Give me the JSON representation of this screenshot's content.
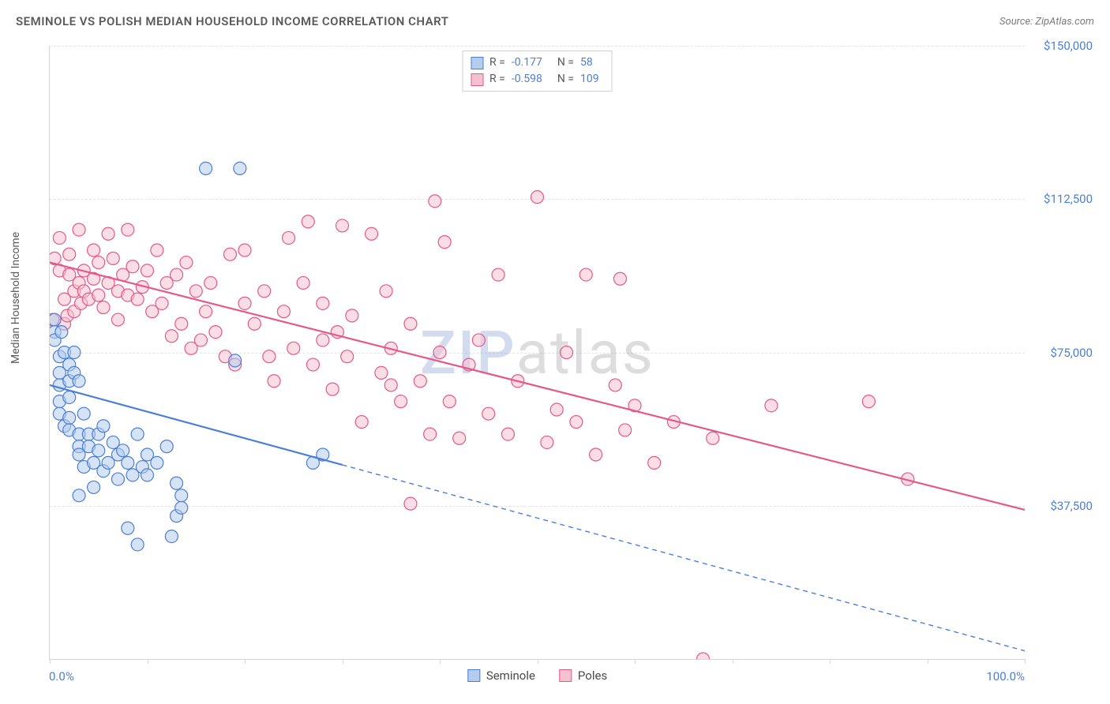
{
  "header": {
    "title": "SEMINOLE VS POLISH MEDIAN HOUSEHOLD INCOME CORRELATION CHART",
    "source": "Source: ZipAtlas.com"
  },
  "watermark": {
    "part1": "ZIP",
    "part2": "atlas"
  },
  "chart": {
    "type": "scatter",
    "background_color": "#ffffff",
    "grid_color": "#e4e4e4",
    "axis_color": "#d6d6d6",
    "text_color": "#5a5a5a",
    "value_color": "#4a7fd8",
    "title_fontsize": 15,
    "label_fontsize": 14,
    "tick_fontsize": 15,
    "ylabel": "Median Household Income",
    "xlim": [
      0,
      100
    ],
    "ylim": [
      0,
      150000
    ],
    "x_left_label": "0.0%",
    "x_right_label": "100.0%",
    "x_ticks": [
      0,
      10,
      20,
      30,
      40,
      50,
      60,
      70,
      80,
      90,
      100
    ],
    "y_ticks": [
      {
        "value": 37500,
        "label": "$37,500"
      },
      {
        "value": 75000,
        "label": "$75,000"
      },
      {
        "value": 112500,
        "label": "$112,500"
      },
      {
        "value": 150000,
        "label": "$150,000"
      }
    ],
    "series": [
      {
        "name": "Seminole",
        "fill_color": "#b4cced",
        "stroke_color": "#4a7fd8",
        "fill_opacity": 0.55,
        "marker_radius": 8,
        "R": "-0.177",
        "N": "58",
        "regression": {
          "solid": {
            "x1": 0,
            "y1": 67000,
            "x2": 30,
            "y2": 47500
          },
          "dashed": {
            "x1": 30,
            "y1": 47500,
            "x2": 100,
            "y2": 2000
          },
          "line_width": 2.2
        },
        "points": [
          [
            0.5,
            83000
          ],
          [
            0.5,
            80000
          ],
          [
            0.5,
            78000
          ],
          [
            1,
            74000
          ],
          [
            1,
            70000
          ],
          [
            1,
            67000
          ],
          [
            1,
            63000
          ],
          [
            1,
            60000
          ],
          [
            1.5,
            57000
          ],
          [
            1.2,
            80000
          ],
          [
            1.5,
            75000
          ],
          [
            2,
            72000
          ],
          [
            2,
            68000
          ],
          [
            2,
            64000
          ],
          [
            2,
            59000
          ],
          [
            2,
            56000
          ],
          [
            2.5,
            75000
          ],
          [
            2.5,
            70000
          ],
          [
            3,
            68000
          ],
          [
            3,
            55000
          ],
          [
            3,
            52000
          ],
          [
            3,
            50000
          ],
          [
            3.5,
            47000
          ],
          [
            3.5,
            60000
          ],
          [
            4,
            55000
          ],
          [
            4,
            52000
          ],
          [
            4.5,
            48000
          ],
          [
            5,
            55000
          ],
          [
            5,
            51000
          ],
          [
            5.5,
            57000
          ],
          [
            5.5,
            46000
          ],
          [
            6,
            48000
          ],
          [
            6.5,
            53000
          ],
          [
            7,
            50000
          ],
          [
            7,
            44000
          ],
          [
            7.5,
            51000
          ],
          [
            8,
            48000
          ],
          [
            8.5,
            45000
          ],
          [
            9,
            55000
          ],
          [
            9.5,
            47000
          ],
          [
            10,
            50000
          ],
          [
            11,
            48000
          ],
          [
            12,
            52000
          ],
          [
            12.5,
            30000
          ],
          [
            13,
            43000
          ],
          [
            8,
            32000
          ],
          [
            9,
            28000
          ],
          [
            13.5,
            40000
          ],
          [
            13,
            35000
          ],
          [
            13.5,
            37000
          ],
          [
            16,
            120000
          ],
          [
            19,
            73000
          ],
          [
            19.5,
            120000
          ],
          [
            27,
            48000
          ],
          [
            28,
            50000
          ],
          [
            4.5,
            42000
          ],
          [
            3,
            40000
          ],
          [
            10,
            45000
          ]
        ]
      },
      {
        "name": "Poles",
        "fill_color": "#f5c1cf",
        "stroke_color": "#e5588a",
        "fill_opacity": 0.55,
        "marker_radius": 8,
        "R": "-0.598",
        "N": "109",
        "regression": {
          "solid": {
            "x1": 0,
            "y1": 97000,
            "x2": 100,
            "y2": 36500
          },
          "dashed": null,
          "line_width": 2.2
        },
        "points": [
          [
            0.5,
            98000
          ],
          [
            1,
            103000
          ],
          [
            1,
            95000
          ],
          [
            1.5,
            88000
          ],
          [
            1.5,
            82000
          ],
          [
            1.8,
            84000
          ],
          [
            0.3,
            83000
          ],
          [
            2,
            99000
          ],
          [
            2,
            94000
          ],
          [
            2.5,
            90000
          ],
          [
            2.5,
            85000
          ],
          [
            3,
            105000
          ],
          [
            3,
            92000
          ],
          [
            3.2,
            87000
          ],
          [
            3.5,
            95000
          ],
          [
            3.5,
            90000
          ],
          [
            4,
            88000
          ],
          [
            4.5,
            100000
          ],
          [
            4.5,
            93000
          ],
          [
            5,
            97000
          ],
          [
            5,
            89000
          ],
          [
            5.5,
            86000
          ],
          [
            6,
            104000
          ],
          [
            6,
            92000
          ],
          [
            6.5,
            98000
          ],
          [
            7,
            90000
          ],
          [
            7,
            83000
          ],
          [
            7.5,
            94000
          ],
          [
            8,
            105000
          ],
          [
            8,
            89000
          ],
          [
            8.5,
            96000
          ],
          [
            9,
            88000
          ],
          [
            9.5,
            91000
          ],
          [
            10,
            95000
          ],
          [
            10.5,
            85000
          ],
          [
            11,
            100000
          ],
          [
            11.5,
            87000
          ],
          [
            12,
            92000
          ],
          [
            12.5,
            79000
          ],
          [
            13,
            94000
          ],
          [
            13.5,
            82000
          ],
          [
            14,
            97000
          ],
          [
            14.5,
            76000
          ],
          [
            15,
            90000
          ],
          [
            15.5,
            78000
          ],
          [
            16,
            85000
          ],
          [
            16.5,
            92000
          ],
          [
            17,
            80000
          ],
          [
            18,
            74000
          ],
          [
            18.5,
            99000
          ],
          [
            19,
            72000
          ],
          [
            20,
            87000
          ],
          [
            21,
            82000
          ],
          [
            22,
            90000
          ],
          [
            22.5,
            74000
          ],
          [
            23,
            68000
          ],
          [
            24,
            85000
          ],
          [
            24.5,
            103000
          ],
          [
            25,
            76000
          ],
          [
            26,
            92000
          ],
          [
            26.5,
            107000
          ],
          [
            27,
            72000
          ],
          [
            28,
            87000
          ],
          [
            29,
            66000
          ],
          [
            29.5,
            80000
          ],
          [
            30,
            106000
          ],
          [
            30.5,
            74000
          ],
          [
            31,
            84000
          ],
          [
            32,
            58000
          ],
          [
            33,
            104000
          ],
          [
            34,
            70000
          ],
          [
            34.5,
            90000
          ],
          [
            35,
            76000
          ],
          [
            36,
            63000
          ],
          [
            37,
            82000
          ],
          [
            38,
            68000
          ],
          [
            39,
            55000
          ],
          [
            39.5,
            112000
          ],
          [
            40,
            75000
          ],
          [
            40.5,
            102000
          ],
          [
            41,
            63000
          ],
          [
            42,
            54000
          ],
          [
            43,
            72000
          ],
          [
            44,
            78000
          ],
          [
            45,
            60000
          ],
          [
            46,
            94000
          ],
          [
            47,
            55000
          ],
          [
            48,
            68000
          ],
          [
            50,
            113000
          ],
          [
            51,
            53000
          ],
          [
            52,
            61000
          ],
          [
            53,
            75000
          ],
          [
            54,
            58000
          ],
          [
            55,
            94000
          ],
          [
            56,
            50000
          ],
          [
            58,
            67000
          ],
          [
            58.5,
            93000
          ],
          [
            59,
            56000
          ],
          [
            60,
            62000
          ],
          [
            62,
            48000
          ],
          [
            64,
            58000
          ],
          [
            67,
            0
          ],
          [
            68,
            54000
          ],
          [
            74,
            62000
          ],
          [
            37,
            38000
          ],
          [
            84,
            63000
          ],
          [
            88,
            44000
          ],
          [
            28,
            78000
          ],
          [
            20,
            100000
          ],
          [
            35,
            67000
          ]
        ]
      }
    ]
  }
}
